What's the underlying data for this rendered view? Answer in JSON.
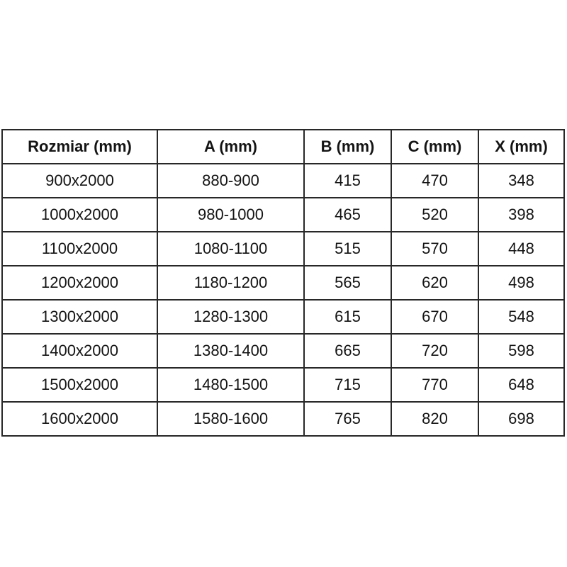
{
  "colors": {
    "background": "#ffffff",
    "border": "#282828",
    "text": "#141414"
  },
  "chart_data": {
    "type": "table",
    "title": "",
    "columns": [
      "Rozmiar (mm)",
      "A (mm)",
      "B (mm)",
      "C (mm)",
      "X (mm)"
    ],
    "rows": [
      [
        "900x2000",
        "880-900",
        "415",
        "470",
        "348"
      ],
      [
        "1000x2000",
        "980-1000",
        "465",
        "520",
        "398"
      ],
      [
        "1100x2000",
        "1080-1100",
        "515",
        "570",
        "448"
      ],
      [
        "1200x2000",
        "1180-1200",
        "565",
        "620",
        "498"
      ],
      [
        "1300x2000",
        "1280-1300",
        "615",
        "670",
        "548"
      ],
      [
        "1400x2000",
        "1380-1400",
        "665",
        "720",
        "598"
      ],
      [
        "1500x2000",
        "1480-1500",
        "715",
        "770",
        "648"
      ],
      [
        "1600x2000",
        "1580-1600",
        "765",
        "820",
        "698"
      ]
    ]
  }
}
